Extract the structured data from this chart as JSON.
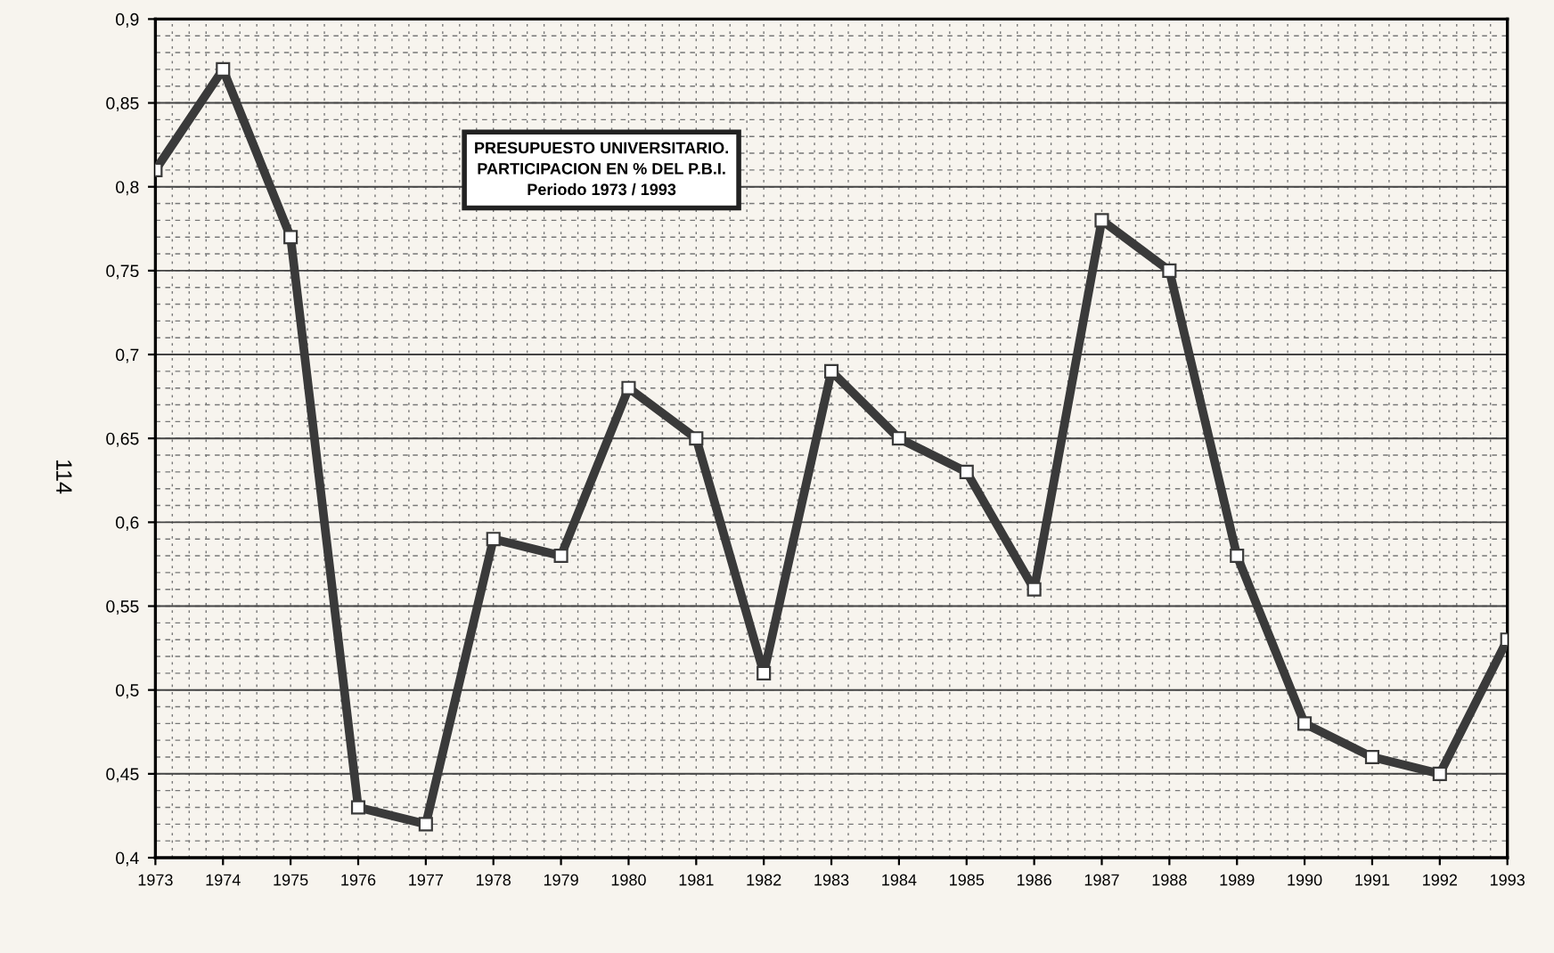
{
  "chart_data": {
    "type": "line",
    "title": "PRESUPUESTO UNIVERSITARIO.\nPARTICIPACION EN % DEL P.B.I.\nPeriodo 1973 / 1993",
    "categories": [
      "1973",
      "1974",
      "1975",
      "1976",
      "1977",
      "1978",
      "1979",
      "1980",
      "1981",
      "1982",
      "1983",
      "1984",
      "1985",
      "1986",
      "1987",
      "1988",
      "1989",
      "1990",
      "1991",
      "1992",
      "1993"
    ],
    "series": [
      {
        "color": "#3a3a3a",
        "values": [
          0.81,
          0.87,
          0.77,
          0.43,
          0.42,
          0.59,
          0.58,
          0.68,
          0.65,
          0.51,
          0.69,
          0.65,
          0.63,
          0.56,
          0.78,
          0.75,
          0.58,
          0.48,
          0.46,
          0.45,
          0.53
        ]
      }
    ],
    "ylim": [
      0.4,
      0.9
    ],
    "yticks": [
      {
        "value": 0.4,
        "label": "0,4"
      },
      {
        "value": 0.45,
        "label": "0,45"
      },
      {
        "value": 0.5,
        "label": "0,5"
      },
      {
        "value": 0.55,
        "label": "0,55"
      },
      {
        "value": 0.6,
        "label": "0,6"
      },
      {
        "value": 0.65,
        "label": "0,65"
      },
      {
        "value": 0.7,
        "label": "0,7"
      },
      {
        "value": 0.75,
        "label": "0,75"
      },
      {
        "value": 0.8,
        "label": "0,8"
      },
      {
        "value": 0.85,
        "label": "0,85"
      },
      {
        "value": 0.9,
        "label": "0,9"
      }
    ],
    "grid": true,
    "marker": "square",
    "line_style": "solid",
    "annotations": [
      "114"
    ]
  }
}
